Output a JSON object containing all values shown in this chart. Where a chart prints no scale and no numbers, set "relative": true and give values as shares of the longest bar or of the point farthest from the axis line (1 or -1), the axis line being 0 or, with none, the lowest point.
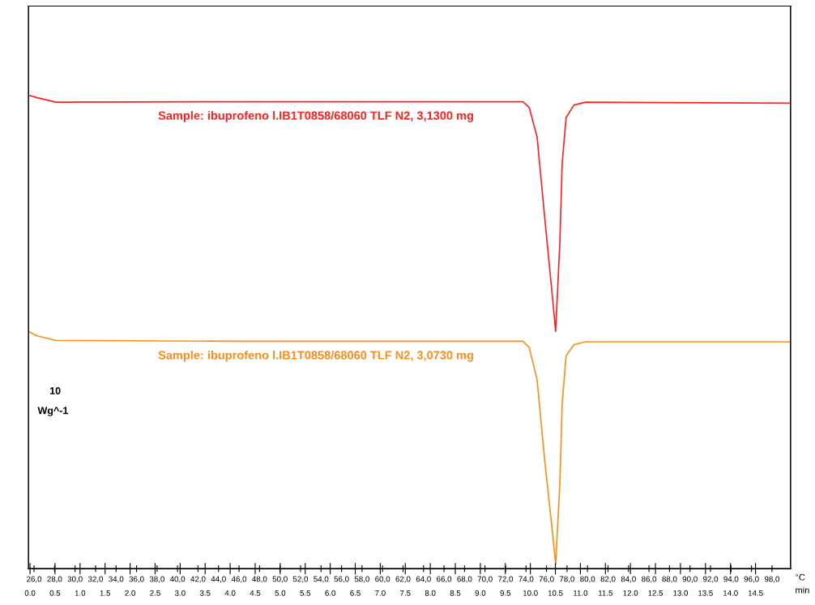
{
  "chart_data": {
    "type": "line",
    "relative": true,
    "xlabel": "°C",
    "x2label": "min",
    "xlim": [
      25.46,
      99.81
    ],
    "xticks": [
      {
        "value": 26,
        "label": "26,0"
      },
      {
        "value": 28,
        "label": "28,0"
      },
      {
        "value": 30,
        "label": "30,0"
      },
      {
        "value": 32,
        "label": "32,0"
      },
      {
        "value": 34,
        "label": "34,0"
      },
      {
        "value": 36,
        "label": "36,0"
      },
      {
        "value": 38,
        "label": "38,0"
      },
      {
        "value": 40,
        "label": "40,0"
      },
      {
        "value": 42,
        "label": "42,0"
      },
      {
        "value": 44,
        "label": "44,0"
      },
      {
        "value": 46,
        "label": "46,0"
      },
      {
        "value": 48,
        "label": "48,0"
      },
      {
        "value": 50,
        "label": "50,0"
      },
      {
        "value": 52,
        "label": "52,0"
      },
      {
        "value": 54,
        "label": "54,0"
      },
      {
        "value": 56,
        "label": "56,0"
      },
      {
        "value": 58,
        "label": "58,0"
      },
      {
        "value": 60,
        "label": "60,0"
      },
      {
        "value": 62,
        "label": "62,0"
      },
      {
        "value": 64,
        "label": "64,0"
      },
      {
        "value": 66,
        "label": "66,0"
      },
      {
        "value": 68,
        "label": "68,0"
      },
      {
        "value": 70,
        "label": "70,0"
      },
      {
        "value": 72,
        "label": "72,0"
      },
      {
        "value": 74,
        "label": "74,0"
      },
      {
        "value": 76,
        "label": "76,0"
      },
      {
        "value": 78,
        "label": "78,0"
      },
      {
        "value": 80,
        "label": "80,0"
      },
      {
        "value": 82,
        "label": "82,0"
      },
      {
        "value": 84,
        "label": "84,0"
      },
      {
        "value": 86,
        "label": "86,0"
      },
      {
        "value": 88,
        "label": "88,0"
      },
      {
        "value": 90,
        "label": "90,0"
      },
      {
        "value": 92,
        "label": "92,0"
      },
      {
        "value": 94,
        "label": "94,0"
      },
      {
        "value": 96,
        "label": "96,0"
      },
      {
        "value": 98,
        "label": "98,0"
      }
    ],
    "x2lim": [
      -0.03,
      15.2
    ],
    "x2ticks": [
      {
        "value": 0,
        "label": "0.0"
      },
      {
        "value": 0.5,
        "label": "0.5"
      },
      {
        "value": 1,
        "label": "1.0"
      },
      {
        "value": 1.5,
        "label": "1.5"
      },
      {
        "value": 2,
        "label": "2.0"
      },
      {
        "value": 2.5,
        "label": "2.5"
      },
      {
        "value": 3,
        "label": "3.0"
      },
      {
        "value": 3.5,
        "label": "3.5"
      },
      {
        "value": 4,
        "label": "4.0"
      },
      {
        "value": 4.5,
        "label": "4.5"
      },
      {
        "value": 5,
        "label": "5.0"
      },
      {
        "value": 5.5,
        "label": "5.5"
      },
      {
        "value": 6,
        "label": "6.0"
      },
      {
        "value": 6.5,
        "label": "6.5"
      },
      {
        "value": 7,
        "label": "7.0"
      },
      {
        "value": 7.5,
        "label": "7.5"
      },
      {
        "value": 8,
        "label": "8.0"
      },
      {
        "value": 8.5,
        "label": "8.5"
      },
      {
        "value": 9,
        "label": "9.0"
      },
      {
        "value": 9.5,
        "label": "9.5"
      },
      {
        "value": 10,
        "label": "10.0"
      },
      {
        "value": 10.5,
        "label": "10.5"
      },
      {
        "value": 11,
        "label": "11.0"
      },
      {
        "value": 11.5,
        "label": "11.5"
      },
      {
        "value": 12,
        "label": "12.0"
      },
      {
        "value": 12.5,
        "label": "12.5"
      },
      {
        "value": 13,
        "label": "13.0"
      },
      {
        "value": 13.5,
        "label": "13.5"
      },
      {
        "value": 14,
        "label": "14.0"
      },
      {
        "value": 14.5,
        "label": "14.5"
      }
    ],
    "x": [
      25.46,
      26.23,
      28.14,
      45.75,
      73.7,
      74.31,
      75.08,
      75.82,
      76.58,
      76.89,
      77.3,
      77.53,
      77.91,
      78.68,
      79.83,
      99.81
    ],
    "annotations": [
      "10",
      "Wg^-1"
    ],
    "grid": false,
    "legend": false,
    "series": [
      {
        "name": "Sample: ibuprofeno l.IB1T0858/68060 TLF N2, 3,1300 mg",
        "color": "#ff2020",
        "values": [
          1.0,
          0.995,
          0.985,
          0.986,
          0.986,
          0.974,
          0.911,
          0.74,
          0.569,
          0.496,
          0.684,
          0.855,
          0.952,
          0.979,
          0.985,
          0.983
        ]
      },
      {
        "name": "Sample: ibuprofeno l.IB1T0858/68060 TLF N2, 3,0730 mg",
        "color": "#ff8c1a",
        "values": [
          0.496,
          0.487,
          0.477,
          0.475,
          0.475,
          0.462,
          0.393,
          0.222,
          0.068,
          0.0,
          0.171,
          0.342,
          0.444,
          0.468,
          0.474,
          0.474
        ]
      }
    ]
  }
}
